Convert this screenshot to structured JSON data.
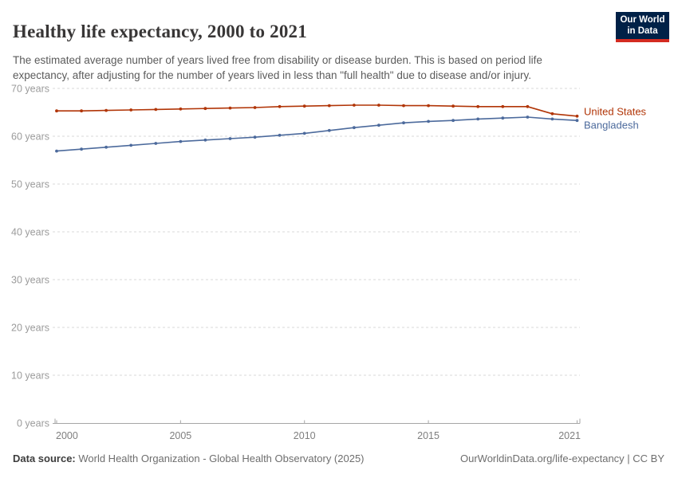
{
  "header": {
    "title": "Healthy life expectancy, 2000 to 2021",
    "subtitle": "The estimated average number of years lived free from disability or disease burden. This is based on period life expectancy, after adjusting for the number of years lived in less than \"full health\" due to disease and/or injury.",
    "logo": {
      "line1": "Our World",
      "line2": "in Data",
      "bg_color": "#002147",
      "accent_color": "#d42b21"
    }
  },
  "chart_data": {
    "type": "line",
    "title": "Healthy life expectancy, 2000 to 2021",
    "x": [
      2000,
      2001,
      2002,
      2003,
      2004,
      2005,
      2006,
      2007,
      2008,
      2009,
      2010,
      2011,
      2012,
      2013,
      2014,
      2015,
      2016,
      2017,
      2018,
      2019,
      2020,
      2021
    ],
    "series": [
      {
        "name": "United States",
        "color": "#b13507",
        "values": [
          65.3,
          65.3,
          65.4,
          65.5,
          65.6,
          65.7,
          65.8,
          65.9,
          66.0,
          66.2,
          66.3,
          66.4,
          66.5,
          66.5,
          66.4,
          66.4,
          66.3,
          66.2,
          66.2,
          66.2,
          64.7,
          64.2
        ]
      },
      {
        "name": "Bangladesh",
        "color": "#4c6a9c",
        "values": [
          56.9,
          57.3,
          57.7,
          58.1,
          58.5,
          58.9,
          59.2,
          59.5,
          59.8,
          60.2,
          60.6,
          61.2,
          61.8,
          62.3,
          62.8,
          63.1,
          63.3,
          63.6,
          63.8,
          64.0,
          63.6,
          63.3
        ]
      }
    ],
    "ylim": [
      0,
      70
    ],
    "ytick_values": [
      0,
      10,
      20,
      30,
      40,
      50,
      60,
      70
    ],
    "ytick_suffix": " years",
    "xticks": [
      2000,
      2005,
      2010,
      2015,
      2021
    ],
    "grid": "horizontal-dashed",
    "legend_position": "line-end-labels",
    "marker": "dot"
  },
  "footer": {
    "source_label": "Data source:",
    "source_text": " World Health Organization - Global Health Observatory (2025)",
    "right_text": "OurWorldinData.org/life-expectancy | CC BY"
  }
}
